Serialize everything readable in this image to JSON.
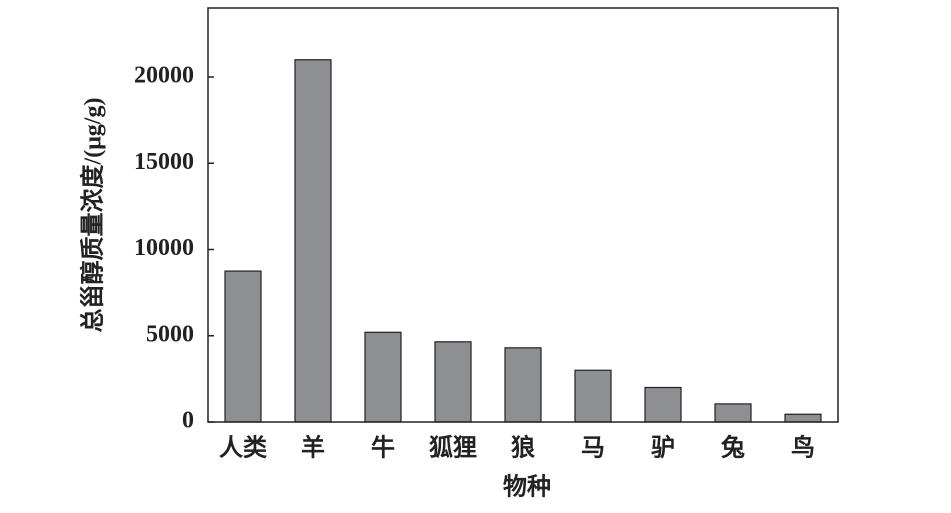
{
  "chart_data": {
    "type": "bar",
    "x_label": "物种",
    "y_label": "总甾醇质量浓度/(μg/g)",
    "categories": [
      "人类",
      "羊",
      "牛",
      "狐狸",
      "狼",
      "马",
      "驴",
      "兔",
      "鸟"
    ],
    "values": [
      8750,
      21000,
      5200,
      4650,
      4300,
      3000,
      2000,
      1050,
      450
    ],
    "color": "#8e8f93",
    "ylim": [
      0,
      24000
    ],
    "yticks": [
      0,
      5000,
      10000,
      15000,
      20000
    ]
  }
}
